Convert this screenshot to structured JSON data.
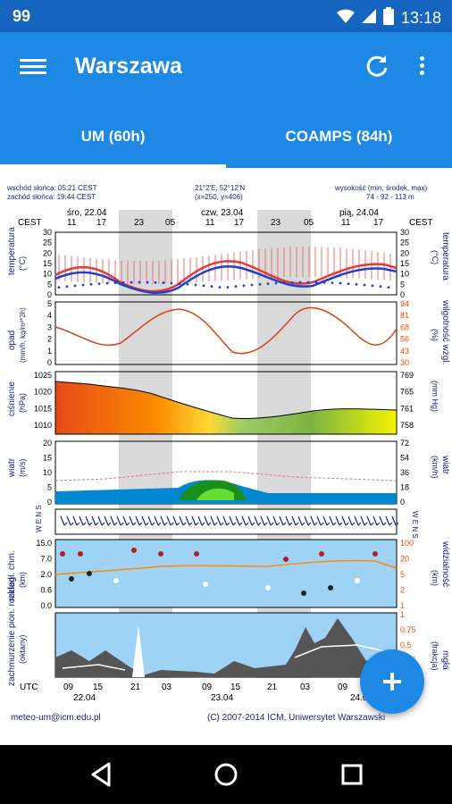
{
  "status_bar": {
    "notification_count": "99",
    "time": "13:18"
  },
  "app_bar": {
    "title": "Warszawa"
  },
  "tabs": [
    {
      "label": "UM (60h)"
    },
    {
      "label": "COAMPS (84h)"
    }
  ],
  "meteogram": {
    "sunrise": "wschód słońca: 05:21 CEST",
    "sunset": "zachód słońca: 19:44 CEST",
    "coords": "21°2'E, 52°12'N",
    "grid": "(x=250, y=406)",
    "height_label": "wysokość (min, środek, max)",
    "height_values": "74 - 92 - 113 m",
    "cest_left": "CEST",
    "cest_right": "CEST",
    "dates_top": [
      "śro, 22.04",
      "czw, 23.04",
      "pią, 24.04"
    ],
    "hours_top": [
      "11",
      "17",
      "23",
      "05",
      "11",
      "17",
      "23",
      "05",
      "11",
      "17"
    ],
    "hours_bottom": [
      "09",
      "15",
      "21",
      "03",
      "09",
      "15",
      "21",
      "03",
      "09",
      "15"
    ],
    "dates_bottom": [
      "22.04",
      "23.04",
      "24.04"
    ],
    "utc_label": "UTC",
    "panels": {
      "temperature": {
        "left_label": "temperatura",
        "left_unit": "(°C)",
        "right_label": "temperatura",
        "right_unit": "(°C)",
        "ticks": [
          "30",
          "25",
          "20",
          "15",
          "10",
          "5",
          "0"
        ]
      },
      "precipitation": {
        "left_label": "opad",
        "left_unit": "(mm/h, kg/m²*2h)",
        "right_label": "wilgotność wzgl.",
        "right_unit": "(%)",
        "left_ticks": [
          "5",
          "4",
          "3",
          "2",
          "1",
          "0"
        ],
        "right_ticks": [
          "94",
          "81",
          "68",
          "56",
          "43",
          "30"
        ]
      },
      "pressure": {
        "left_label": "ciśnienie",
        "left_unit": "(hPa)",
        "right_unit": "(mm Hg)",
        "left_ticks": [
          "1025",
          "1020",
          "1015",
          "1010"
        ],
        "right_ticks": [
          "769",
          "765",
          "761",
          "758"
        ]
      },
      "wind": {
        "left_label": "wiatr",
        "left_unit": "(m/s)",
        "right_label": "wiatr",
        "right_unit": "(km/h)",
        "left_ticks": [
          "20",
          "15",
          "10",
          "5",
          "0"
        ],
        "right_ticks": [
          "72",
          "54",
          "36",
          "18",
          "0"
        ]
      },
      "wind_dir": {
        "left": "W E N S",
        "right": "W E N S"
      },
      "visibility": {
        "left_label": "rozległ. chm.",
        "left_unit": "(km)",
        "right_label": "widzialność",
        "right_unit": "(km)",
        "left_ticks": [
          "15.0",
          "7.0",
          "2.0",
          "0.6",
          "0.0"
        ],
        "right_ticks": [
          "100",
          "20",
          "5",
          "2",
          "1"
        ]
      },
      "clouds": {
        "left_label": "zachmurzenie pion. rozkład",
        "left_unit": "(oktany)",
        "right_label": "mgła",
        "right_unit": "(frakcja)",
        "right_ticks": [
          "1",
          "0.75",
          "0.5",
          "0.25",
          "0"
        ]
      }
    },
    "footer_email": "meteo-um@icm.edu.pl",
    "footer_copyright": "(C) 2007-2014 ICM, Uniwersytet Warszawski"
  },
  "colors": {
    "status": "#1565C0",
    "primary": "#1E88E5",
    "temp_max": "#E53935",
    "temp_min": "#1E3FCF"
  }
}
